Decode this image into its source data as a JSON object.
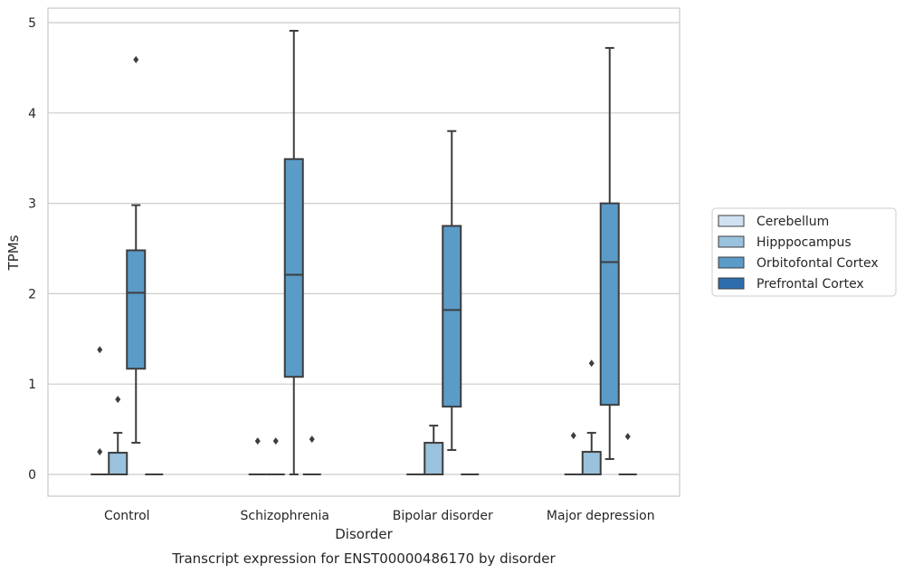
{
  "chart_data": {
    "type": "box",
    "title": "",
    "caption": "Transcript expression for ENST00000486170 by disorder",
    "xlabel": "Disorder",
    "ylabel": "TPMs",
    "ylim": [
      -0.25,
      5.17
    ],
    "yticks": [
      0,
      1,
      2,
      3,
      4,
      5
    ],
    "grid": true,
    "legend_position": "right",
    "categories": [
      "Control",
      "Schizophrenia",
      "Bipolar disorder",
      "Major depression"
    ],
    "series": [
      {
        "name": "Cerebellum",
        "color": "#d0e1f2",
        "boxes": [
          {
            "q1": 0,
            "median": 0,
            "q3": 0,
            "whisker_low": 0,
            "whisker_high": 0,
            "outliers": [
              0.25,
              1.38
            ]
          },
          {
            "q1": 0,
            "median": 0,
            "q3": 0,
            "whisker_low": 0,
            "whisker_high": 0,
            "outliers": [
              0.37
            ]
          },
          {
            "q1": 0,
            "median": 0,
            "q3": 0,
            "whisker_low": 0,
            "whisker_high": 0,
            "outliers": []
          },
          {
            "q1": 0,
            "median": 0,
            "q3": 0,
            "whisker_low": 0,
            "whisker_high": 0,
            "outliers": [
              0.43
            ]
          }
        ]
      },
      {
        "name": "Hipppocampus",
        "color": "#9ac1dd",
        "boxes": [
          {
            "q1": 0,
            "median": 0,
            "q3": 0.24,
            "whisker_low": 0,
            "whisker_high": 0.46,
            "outliers": [
              0.83
            ]
          },
          {
            "q1": 0,
            "median": 0,
            "q3": 0,
            "whisker_low": 0,
            "whisker_high": 0,
            "outliers": [
              0.37
            ]
          },
          {
            "q1": 0,
            "median": 0,
            "q3": 0.35,
            "whisker_low": 0,
            "whisker_high": 0.54,
            "outliers": []
          },
          {
            "q1": 0,
            "median": 0,
            "q3": 0.25,
            "whisker_low": 0,
            "whisker_high": 0.46,
            "outliers": [
              1.23
            ]
          }
        ]
      },
      {
        "name": "Orbitofontal Cortex",
        "color": "#5a9bc8",
        "boxes": [
          {
            "q1": 1.17,
            "median": 2.01,
            "q3": 2.48,
            "whisker_low": 0.35,
            "whisker_high": 2.98,
            "outliers": [
              4.59
            ]
          },
          {
            "q1": 1.08,
            "median": 2.21,
            "q3": 3.49,
            "whisker_low": 0,
            "whisker_high": 4.91,
            "outliers": []
          },
          {
            "q1": 0.75,
            "median": 1.82,
            "q3": 2.75,
            "whisker_low": 0.27,
            "whisker_high": 3.8,
            "outliers": []
          },
          {
            "q1": 0.77,
            "median": 2.35,
            "q3": 3.0,
            "whisker_low": 0.17,
            "whisker_high": 4.72,
            "outliers": []
          }
        ]
      },
      {
        "name": "Prefrontal Cortex",
        "color": "#2c6eab",
        "boxes": [
          {
            "q1": 0,
            "median": 0,
            "q3": 0,
            "whisker_low": 0,
            "whisker_high": 0,
            "outliers": []
          },
          {
            "q1": 0,
            "median": 0,
            "q3": 0,
            "whisker_low": 0,
            "whisker_high": 0,
            "outliers": [
              0.39
            ]
          },
          {
            "q1": 0,
            "median": 0,
            "q3": 0,
            "whisker_low": 0,
            "whisker_high": 0,
            "outliers": []
          },
          {
            "q1": 0,
            "median": 0,
            "q3": 0,
            "whisker_low": 0,
            "whisker_high": 0,
            "outliers": [
              0.42
            ]
          }
        ]
      }
    ]
  }
}
